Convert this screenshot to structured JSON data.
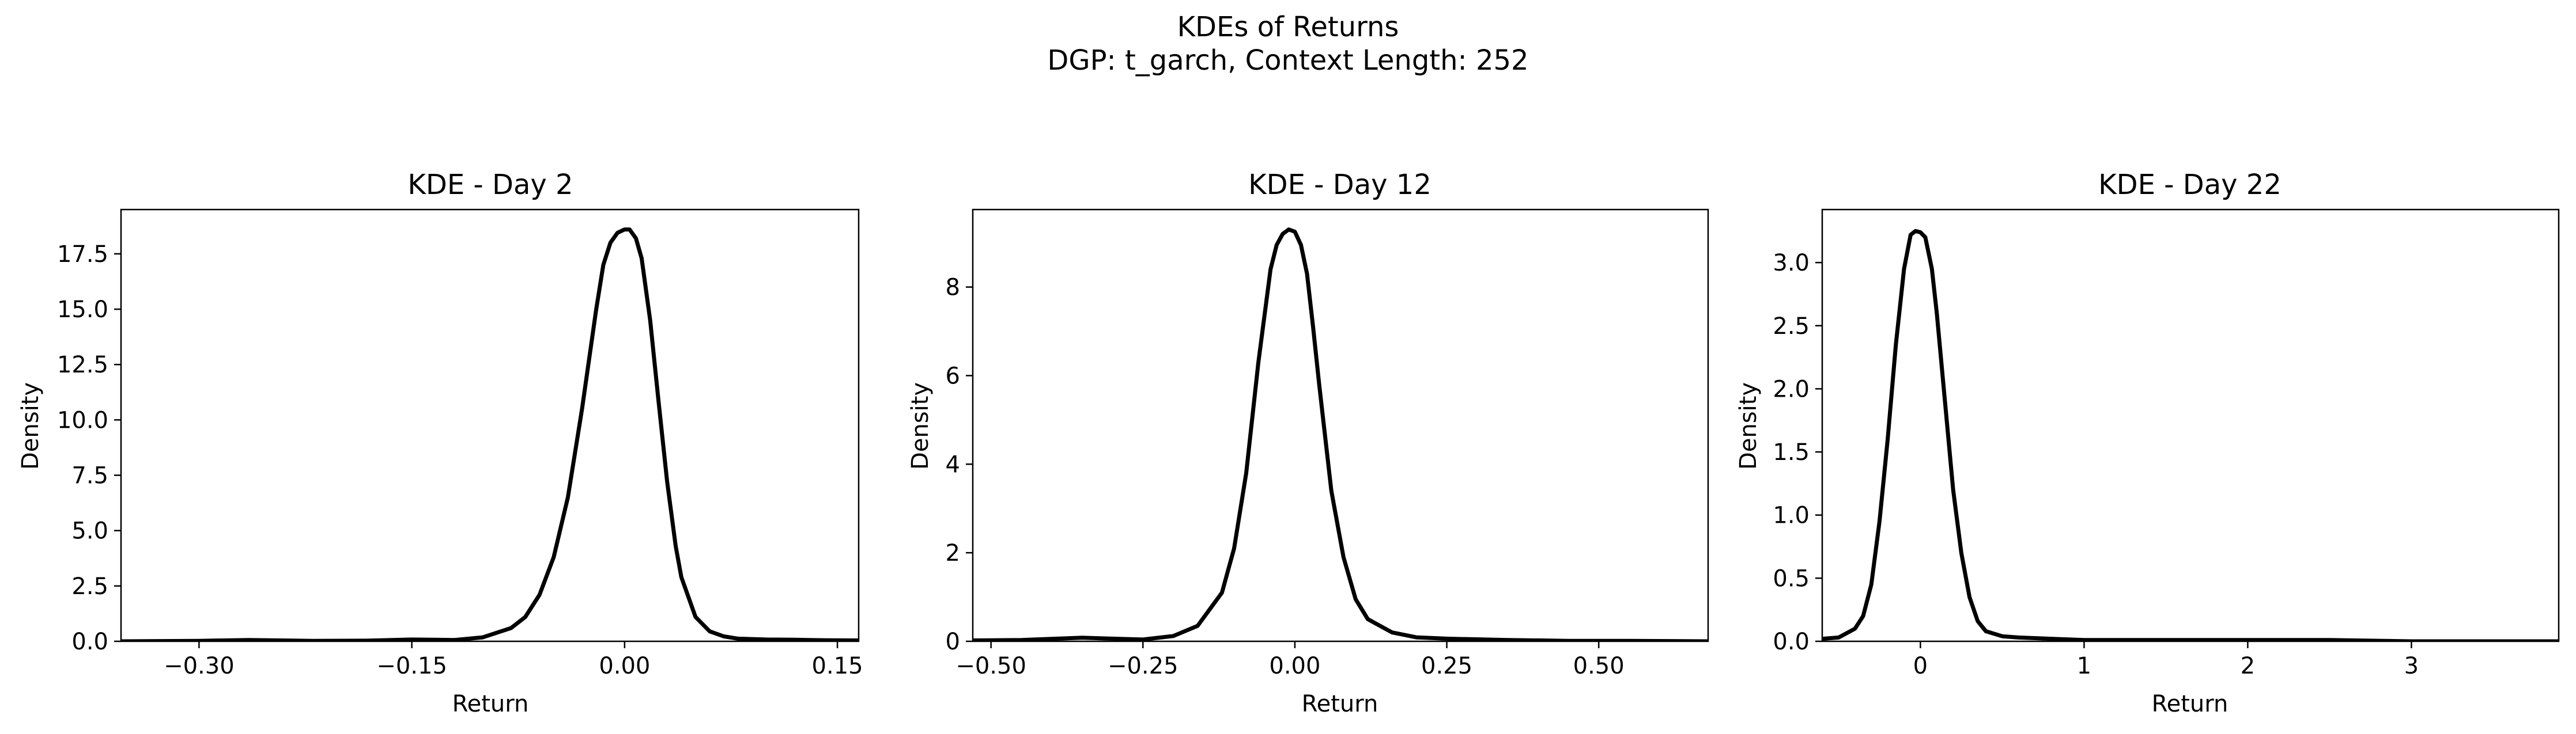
{
  "figure": {
    "title_line1": "KDEs of Returns",
    "title_line2": "DGP: t_garch, Context Length: 252"
  },
  "chart_data": [
    {
      "type": "line",
      "title": "KDE - Day 2",
      "xlabel": "Return",
      "ylabel": "Density",
      "xlim": [
        -0.355,
        0.165
      ],
      "ylim": [
        0,
        19.5
      ],
      "xticks": [
        -0.3,
        -0.15,
        0.0,
        0.15
      ],
      "xtick_labels": [
        "−0.30",
        "−0.15",
        "0.00",
        "0.15"
      ],
      "yticks": [
        0.0,
        2.5,
        5.0,
        7.5,
        10.0,
        12.5,
        15.0,
        17.5
      ],
      "ytick_labels": [
        "0.0",
        "2.5",
        "5.0",
        "7.5",
        "10.0",
        "12.5",
        "15.0",
        "17.5"
      ],
      "series": [
        {
          "color": "#000000",
          "x": [
            -0.355,
            -0.3,
            -0.265,
            -0.22,
            -0.18,
            -0.15,
            -0.12,
            -0.1,
            -0.08,
            -0.07,
            -0.06,
            -0.05,
            -0.04,
            -0.03,
            -0.02,
            -0.015,
            -0.01,
            -0.005,
            0.0,
            0.0035,
            0.008,
            0.012,
            0.018,
            0.024,
            0.03,
            0.036,
            0.04,
            0.05,
            0.06,
            0.07,
            0.08,
            0.1,
            0.12,
            0.14,
            0.165
          ],
          "y": [
            0.0,
            0.02,
            0.06,
            0.02,
            0.03,
            0.08,
            0.06,
            0.18,
            0.6,
            1.1,
            2.1,
            3.8,
            6.5,
            10.5,
            15.0,
            17.0,
            18.0,
            18.45,
            18.6,
            18.6,
            18.2,
            17.3,
            14.5,
            10.8,
            7.2,
            4.3,
            2.9,
            1.1,
            0.45,
            0.22,
            0.12,
            0.08,
            0.07,
            0.05,
            0.04
          ]
        }
      ]
    },
    {
      "type": "line",
      "title": "KDE - Day 12",
      "xlabel": "Return",
      "ylabel": "Density",
      "xlim": [
        -0.53,
        0.68
      ],
      "ylim": [
        0,
        9.75
      ],
      "xticks": [
        -0.5,
        -0.25,
        0.0,
        0.25,
        0.5
      ],
      "xtick_labels": [
        "−0.50",
        "−0.25",
        "0.00",
        "0.25",
        "0.50"
      ],
      "yticks": [
        0,
        2,
        4,
        6,
        8
      ],
      "ytick_labels": [
        "0",
        "2",
        "4",
        "6",
        "8"
      ],
      "series": [
        {
          "color": "#000000",
          "x": [
            -0.53,
            -0.45,
            -0.35,
            -0.25,
            -0.2,
            -0.16,
            -0.12,
            -0.1,
            -0.08,
            -0.06,
            -0.04,
            -0.03,
            -0.02,
            -0.01,
            0.0,
            0.01,
            0.02,
            0.03,
            0.04,
            0.06,
            0.08,
            0.1,
            0.12,
            0.16,
            0.2,
            0.25,
            0.35,
            0.45,
            0.55,
            0.68
          ],
          "y": [
            0.02,
            0.03,
            0.08,
            0.04,
            0.12,
            0.35,
            1.1,
            2.1,
            3.8,
            6.3,
            8.4,
            8.95,
            9.2,
            9.3,
            9.25,
            8.95,
            8.3,
            7.1,
            5.8,
            3.4,
            1.9,
            0.95,
            0.5,
            0.2,
            0.09,
            0.06,
            0.03,
            0.01,
            0.01,
            0.0
          ]
        }
      ]
    },
    {
      "type": "line",
      "title": "KDE - Day 22",
      "xlabel": "Return",
      "ylabel": "Density",
      "xlim": [
        -0.6,
        3.9
      ],
      "ylim": [
        0,
        3.42
      ],
      "xticks": [
        0,
        1,
        2,
        3
      ],
      "xtick_labels": [
        "0",
        "1",
        "2",
        "3"
      ],
      "yticks": [
        0.0,
        0.5,
        1.0,
        1.5,
        2.0,
        2.5,
        3.0
      ],
      "ytick_labels": [
        "0.0",
        "0.5",
        "1.0",
        "1.5",
        "2.0",
        "2.5",
        "3.0"
      ],
      "series": [
        {
          "color": "#000000",
          "x": [
            -0.6,
            -0.5,
            -0.4,
            -0.35,
            -0.3,
            -0.25,
            -0.2,
            -0.15,
            -0.1,
            -0.06,
            -0.03,
            0.0,
            0.03,
            0.07,
            0.1,
            0.15,
            0.2,
            0.25,
            0.3,
            0.35,
            0.4,
            0.5,
            0.6,
            0.8,
            1.0,
            1.5,
            2.0,
            2.5,
            3.0,
            3.5,
            3.9
          ],
          "y": [
            0.02,
            0.03,
            0.1,
            0.2,
            0.45,
            0.95,
            1.6,
            2.35,
            2.95,
            3.22,
            3.25,
            3.24,
            3.2,
            2.95,
            2.6,
            1.9,
            1.2,
            0.7,
            0.35,
            0.16,
            0.08,
            0.04,
            0.03,
            0.02,
            0.01,
            0.01,
            0.01,
            0.01,
            0.0,
            0.0,
            0.0
          ]
        }
      ]
    }
  ]
}
